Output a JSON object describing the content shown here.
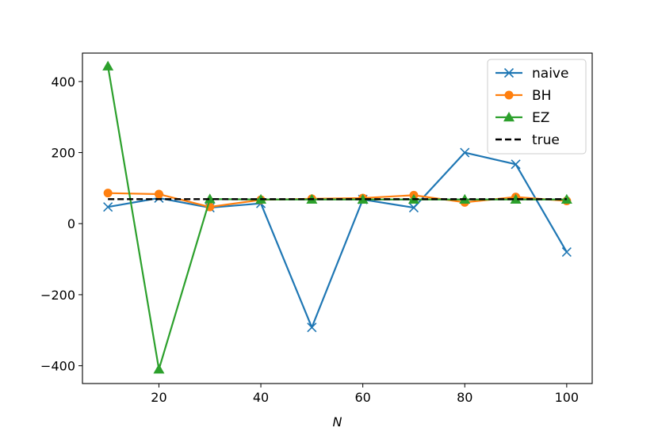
{
  "chart_data": {
    "type": "line",
    "title": "",
    "xlabel": "N",
    "ylabel": "",
    "x": [
      10,
      20,
      30,
      40,
      50,
      60,
      70,
      80,
      90,
      100
    ],
    "xlim": [
      5,
      105
    ],
    "ylim": [
      -450,
      480
    ],
    "xticks": [
      20,
      40,
      60,
      80,
      100
    ],
    "yticks": [
      -400,
      -200,
      0,
      200,
      400
    ],
    "ytick_labels": [
      "−400",
      "−200",
      "0",
      "200",
      "400"
    ],
    "grid": false,
    "legend_position": "upper right",
    "series": [
      {
        "name": "naive",
        "color": "#1f77b4",
        "marker": "x",
        "values": [
          47,
          72,
          45,
          57,
          -292,
          68,
          45,
          200,
          167,
          -80
        ]
      },
      {
        "name": "BH",
        "color": "#ff7f0e",
        "marker": "o",
        "values": [
          86,
          83,
          47,
          67,
          70,
          72,
          80,
          60,
          75,
          64
        ]
      },
      {
        "name": "EZ",
        "color": "#2ca02c",
        "marker": "^",
        "values": [
          443,
          -410,
          69,
          68,
          68,
          68,
          68,
          68,
          68,
          68
        ]
      },
      {
        "name": "true",
        "color": "#000000",
        "marker": "none",
        "dash": true,
        "values": [
          69,
          69,
          69,
          69,
          69,
          69,
          69,
          69,
          69,
          69
        ]
      }
    ]
  }
}
